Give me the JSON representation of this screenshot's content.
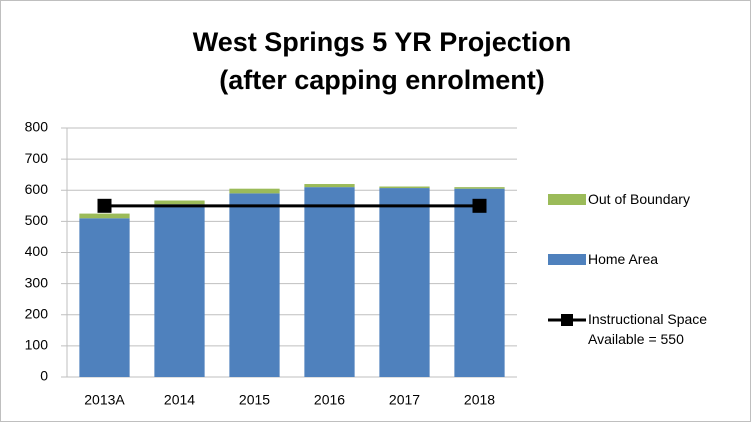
{
  "chart_data": {
    "type": "bar",
    "title": [
      "West Springs 5 YR Projection",
      "(after capping enrolment)"
    ],
    "categories": [
      "2013A",
      "2014",
      "2015",
      "2016",
      "2017",
      "2018"
    ],
    "series": [
      {
        "name": "Home Area",
        "color": "#4f81bd",
        "values": [
          510,
          555,
          590,
          610,
          607,
          605
        ]
      },
      {
        "name": "Out of Boundary",
        "color": "#9bbb59",
        "values": [
          15,
          12,
          15,
          10,
          5,
          5
        ]
      },
      {
        "name": "Instructional Space Available = 550",
        "type": "line",
        "color": "#000000",
        "values": [
          550,
          550,
          550,
          550,
          550,
          550
        ]
      }
    ],
    "stacked": true,
    "ylim": [
      0,
      800
    ],
    "yticks": [
      0,
      100,
      200,
      300,
      400,
      500,
      600,
      700,
      800
    ],
    "grid": true
  }
}
